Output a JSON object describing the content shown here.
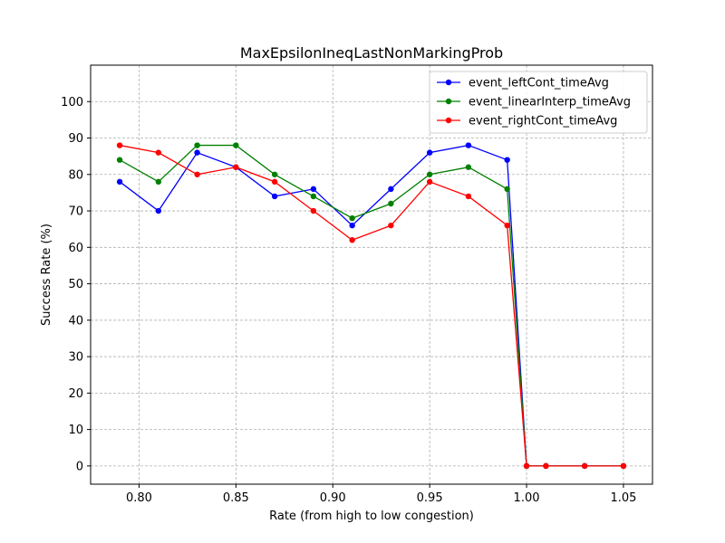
{
  "chart_data": {
    "type": "line",
    "title": "MaxEpsilonIneqLastNonMarkingProb",
    "xlabel": "Rate (from high to low congestion)",
    "ylabel": "Success Rate (%)",
    "xlim": [
      0.775,
      1.065
    ],
    "ylim": [
      -5,
      110
    ],
    "xticks": [
      "0.80",
      "0.85",
      "0.90",
      "0.95",
      "1.00",
      "1.05"
    ],
    "yticks": [
      "0",
      "10",
      "20",
      "30",
      "40",
      "50",
      "60",
      "70",
      "80",
      "90",
      "100"
    ],
    "grid": true,
    "legend_position": "top-right",
    "x": [
      0.79,
      0.81,
      0.83,
      0.85,
      0.87,
      0.89,
      0.91,
      0.93,
      0.95,
      0.97,
      0.99,
      1.0,
      1.01,
      1.03,
      1.05
    ],
    "series": [
      {
        "name": "event_leftCont_timeAvg",
        "color": "#0000ff",
        "values": [
          78,
          70,
          86,
          82,
          74,
          76,
          66,
          76,
          86,
          88,
          84,
          0,
          0,
          0,
          0
        ]
      },
      {
        "name": "event_linearInterp_timeAvg",
        "color": "#008000",
        "values": [
          84,
          78,
          88,
          88,
          80,
          74,
          68,
          72,
          80,
          82,
          76,
          0,
          0,
          0,
          0
        ]
      },
      {
        "name": "event_rightCont_timeAvg",
        "color": "#ff0000",
        "values": [
          88,
          86,
          80,
          82,
          78,
          70,
          62,
          66,
          78,
          74,
          66,
          0,
          0,
          0,
          0
        ]
      }
    ]
  }
}
